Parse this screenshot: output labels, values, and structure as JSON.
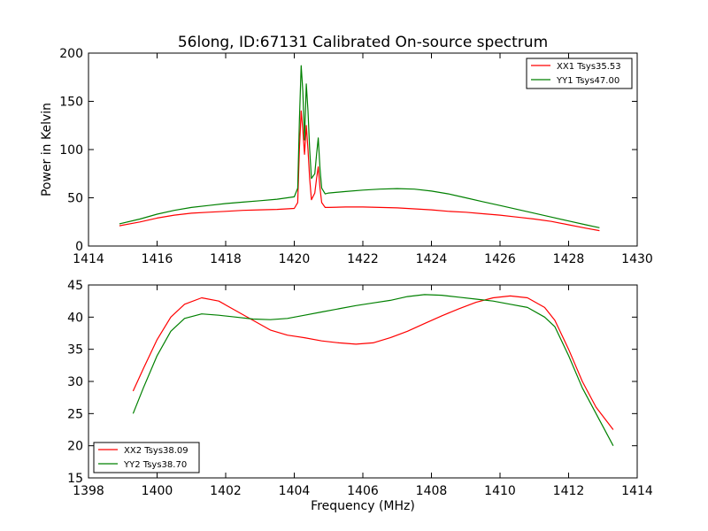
{
  "chart_data": [
    {
      "type": "line",
      "title": "56long, ID:67131 Calibrated On-source spectrum",
      "xlabel": "",
      "ylabel": "Power in Kelvin",
      "xlim": [
        1414,
        1430
      ],
      "ylim": [
        0,
        200
      ],
      "xticks": [
        1414,
        1416,
        1418,
        1420,
        1422,
        1424,
        1426,
        1428,
        1430
      ],
      "yticks": [
        0,
        50,
        100,
        150,
        200
      ],
      "legend_position": "top-right",
      "grid": false,
      "series": [
        {
          "name": "XX1 Tsys35.53",
          "color": "#ff0000",
          "x": [
            1414.9,
            1415.5,
            1416.0,
            1416.5,
            1417.0,
            1417.5,
            1418.0,
            1418.5,
            1419.0,
            1419.5,
            1420.0,
            1420.1,
            1420.15,
            1420.2,
            1420.25,
            1420.3,
            1420.35,
            1420.4,
            1420.45,
            1420.5,
            1420.6,
            1420.65,
            1420.7,
            1420.75,
            1420.8,
            1420.9,
            1421.0,
            1421.5,
            1422.0,
            1422.5,
            1423.0,
            1423.5,
            1424.0,
            1424.5,
            1425.0,
            1425.5,
            1426.0,
            1426.5,
            1427.0,
            1427.5,
            1428.0,
            1428.5,
            1428.9
          ],
          "y": [
            21,
            25,
            29,
            32,
            34,
            35,
            36,
            37,
            37.5,
            38,
            39,
            45,
            100,
            140,
            120,
            95,
            125,
            100,
            70,
            48,
            55,
            70,
            82,
            60,
            45,
            40,
            40,
            40.5,
            40.5,
            40,
            39.5,
            38.5,
            37.5,
            36,
            35,
            33.5,
            32,
            30,
            28,
            25.5,
            22,
            18.5,
            16
          ]
        },
        {
          "name": "YY1 Tsys47.00",
          "color": "#008000",
          "x": [
            1414.9,
            1415.5,
            1416.0,
            1416.5,
            1417.0,
            1417.5,
            1418.0,
            1418.5,
            1419.0,
            1419.5,
            1420.0,
            1420.1,
            1420.15,
            1420.2,
            1420.25,
            1420.3,
            1420.35,
            1420.4,
            1420.45,
            1420.5,
            1420.6,
            1420.65,
            1420.7,
            1420.75,
            1420.8,
            1420.9,
            1421.0,
            1421.5,
            1422.0,
            1422.5,
            1423.0,
            1423.5,
            1424.0,
            1424.5,
            1425.0,
            1425.5,
            1426.0,
            1426.5,
            1427.0,
            1427.5,
            1428.0,
            1428.5,
            1428.9
          ],
          "y": [
            23,
            28,
            33,
            37,
            40,
            42,
            44,
            45.5,
            47,
            48.5,
            51,
            60,
            130,
            187,
            160,
            110,
            168,
            140,
            100,
            70,
            75,
            95,
            112,
            80,
            60,
            54,
            55,
            56.5,
            58,
            59,
            59.5,
            59,
            57,
            54,
            50,
            46,
            42,
            38,
            34,
            30,
            26,
            22,
            19
          ]
        }
      ]
    },
    {
      "type": "line",
      "title": "",
      "xlabel": "Frequency (MHz)",
      "ylabel": "",
      "xlim": [
        1398,
        1414
      ],
      "ylim": [
        15,
        45
      ],
      "xticks": [
        1398,
        1400,
        1402,
        1404,
        1406,
        1408,
        1410,
        1412,
        1414
      ],
      "yticks": [
        15,
        20,
        25,
        30,
        35,
        40,
        45
      ],
      "legend_position": "bottom-left",
      "grid": false,
      "series": [
        {
          "name": "XX2 Tsys38.09",
          "color": "#ff0000",
          "x": [
            1399.3,
            1399.6,
            1400.0,
            1400.4,
            1400.8,
            1401.3,
            1401.8,
            1402.3,
            1402.8,
            1403.3,
            1403.8,
            1404.3,
            1404.8,
            1405.3,
            1405.8,
            1406.3,
            1406.8,
            1407.3,
            1407.8,
            1408.3,
            1408.8,
            1409.3,
            1409.8,
            1410.3,
            1410.8,
            1411.3,
            1411.6,
            1412.0,
            1412.4,
            1412.8,
            1413.3
          ],
          "y": [
            28.5,
            32,
            36.5,
            40,
            42,
            43,
            42.5,
            41,
            39.5,
            38,
            37.2,
            36.8,
            36.3,
            36,
            35.8,
            36,
            36.8,
            37.8,
            39,
            40.2,
            41.3,
            42.3,
            43,
            43.3,
            43,
            41.5,
            39.5,
            35,
            30,
            26,
            22.5
          ]
        },
        {
          "name": "YY2 Tsys38.70",
          "color": "#008000",
          "x": [
            1399.3,
            1399.6,
            1400.0,
            1400.4,
            1400.8,
            1401.3,
            1401.8,
            1402.3,
            1402.8,
            1403.3,
            1403.8,
            1404.3,
            1404.8,
            1405.3,
            1405.8,
            1406.3,
            1406.8,
            1407.3,
            1407.8,
            1408.3,
            1408.8,
            1409.3,
            1409.8,
            1410.3,
            1410.8,
            1411.3,
            1411.6,
            1412.0,
            1412.4,
            1412.8,
            1413.3
          ],
          "y": [
            25,
            29,
            34,
            37.8,
            39.8,
            40.5,
            40.3,
            40,
            39.7,
            39.6,
            39.8,
            40.3,
            40.8,
            41.3,
            41.8,
            42.2,
            42.6,
            43.2,
            43.5,
            43.4,
            43.1,
            42.8,
            42.5,
            42,
            41.5,
            40,
            38.5,
            34,
            29,
            25,
            20
          ]
        }
      ]
    }
  ]
}
